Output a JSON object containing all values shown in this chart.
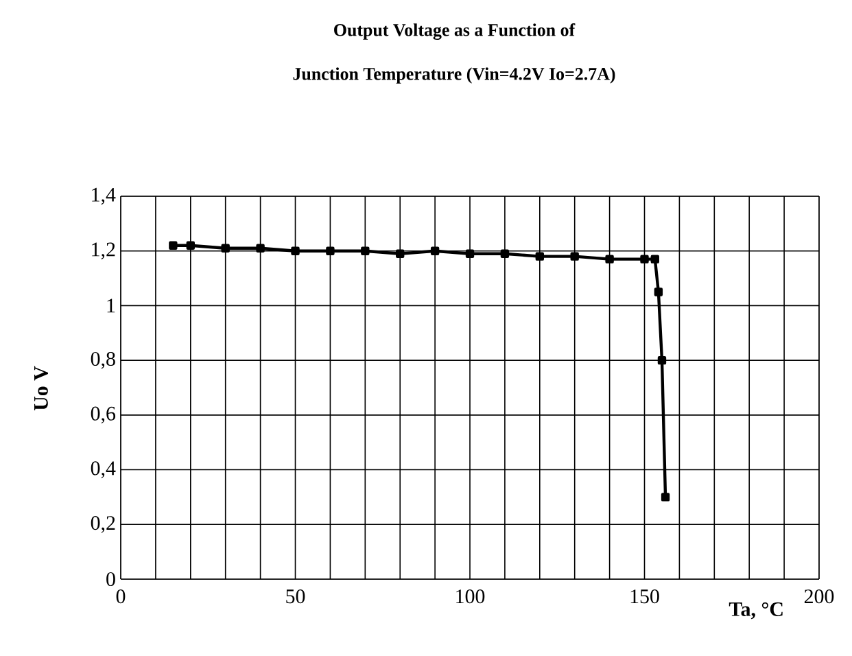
{
  "chart_data": {
    "type": "line",
    "title": "Output Voltage as a Function of",
    "subtitle": "Junction Temperature  (Vin=4.2V Io=2.7A)",
    "xlabel": "Ta, °C",
    "ylabel": "Uo V",
    "x": [
      15,
      20,
      30,
      40,
      50,
      60,
      70,
      80,
      90,
      100,
      110,
      120,
      130,
      140,
      150,
      153,
      154,
      155,
      156
    ],
    "values": [
      1.22,
      1.22,
      1.21,
      1.21,
      1.2,
      1.2,
      1.2,
      1.19,
      1.2,
      1.19,
      1.19,
      1.18,
      1.18,
      1.17,
      1.17,
      1.17,
      1.05,
      0.8,
      0.3
    ],
    "color": "#000000",
    "xlim": [
      0,
      200
    ],
    "xticks": [
      0,
      50,
      100,
      150,
      200
    ],
    "ylim": [
      0,
      1.4
    ],
    "yticks": [
      {
        "value": 0,
        "label": "0"
      },
      {
        "value": 0.2,
        "label": "0,2"
      },
      {
        "value": 0.4,
        "label": "0,4"
      },
      {
        "value": 0.6,
        "label": "0,6"
      },
      {
        "value": 0.8,
        "label": "0,8"
      },
      {
        "value": 1,
        "label": "1"
      },
      {
        "value": 1.2,
        "label": "1,2"
      },
      {
        "value": 1.4,
        "label": "1,4"
      }
    ],
    "grid": true,
    "marker": "square",
    "line_style": "solid"
  }
}
